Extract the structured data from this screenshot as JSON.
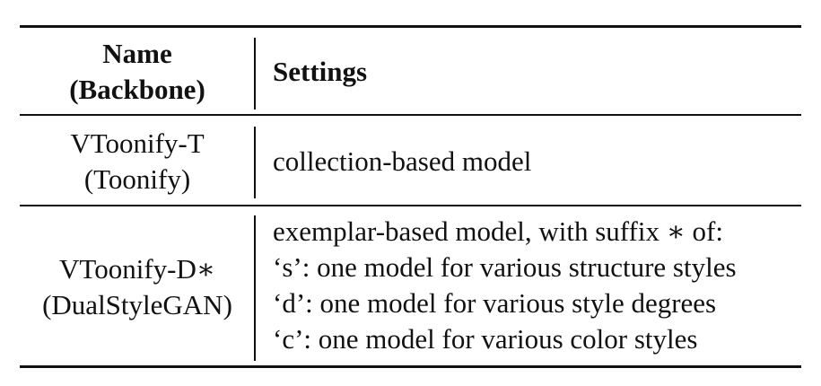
{
  "table": {
    "header": {
      "name_line1": "Name",
      "name_line2": "(Backbone)",
      "settings": "Settings"
    },
    "rows": [
      {
        "name_line1": "VToonify-T",
        "name_line2": "(Toonify)",
        "settings": [
          "collection-based model"
        ]
      },
      {
        "name_line1": "VToonify-D∗",
        "name_line2": "(DualStyleGAN)",
        "settings": [
          "exemplar-based model, with suffix ∗ of:",
          "‘s’: one model for various structure styles",
          "‘d’: one model for various style degrees",
          "‘c’: one model for various color styles"
        ]
      }
    ]
  }
}
